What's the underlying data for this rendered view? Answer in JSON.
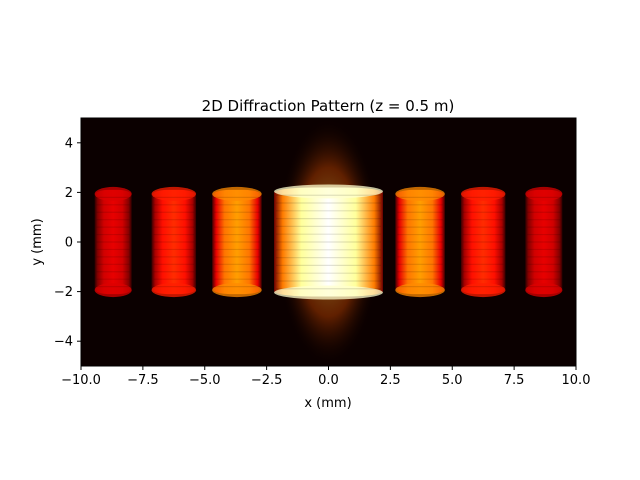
{
  "chart_data": {
    "type": "heatmap",
    "title": "2D Diffraction Pattern (z = 0.5 m)",
    "xlabel": "x (mm)",
    "ylabel": "y (mm)",
    "xlim": [
      -10,
      10
    ],
    "ylim": [
      -5,
      5
    ],
    "x_ticks": [
      -10,
      -7.5,
      -5,
      -2.5,
      0,
      2.5,
      5,
      7.5,
      10
    ],
    "x_tick_labels": [
      "−10.0",
      "−7.5",
      "−5.0",
      "−2.5",
      "0.0",
      "2.5",
      "5.0",
      "7.5",
      "10.0"
    ],
    "y_ticks": [
      -4,
      -2,
      0,
      2,
      4
    ],
    "y_tick_labels": [
      "−4",
      "−2",
      "0",
      "2",
      "4"
    ],
    "colormap": "hot",
    "background_color": "#0b0000",
    "grid": false,
    "bands": [
      {
        "x_center": -8.7,
        "half_width": 0.75,
        "y_half_height": 2.1,
        "peak_intensity": 0.33
      },
      {
        "x_center": -6.25,
        "half_width": 0.9,
        "y_half_height": 2.1,
        "peak_intensity": 0.43
      },
      {
        "x_center": -3.7,
        "half_width": 1.0,
        "y_half_height": 2.1,
        "peak_intensity": 0.6
      },
      {
        "x_center": 0.0,
        "half_width": 2.2,
        "y_half_height": 2.2,
        "peak_intensity": 1.0
      },
      {
        "x_center": 3.7,
        "half_width": 1.0,
        "y_half_height": 2.1,
        "peak_intensity": 0.6
      },
      {
        "x_center": 6.25,
        "half_width": 0.9,
        "y_half_height": 2.1,
        "peak_intensity": 0.43
      },
      {
        "x_center": 8.7,
        "half_width": 0.75,
        "y_half_height": 2.1,
        "peak_intensity": 0.33
      }
    ]
  }
}
